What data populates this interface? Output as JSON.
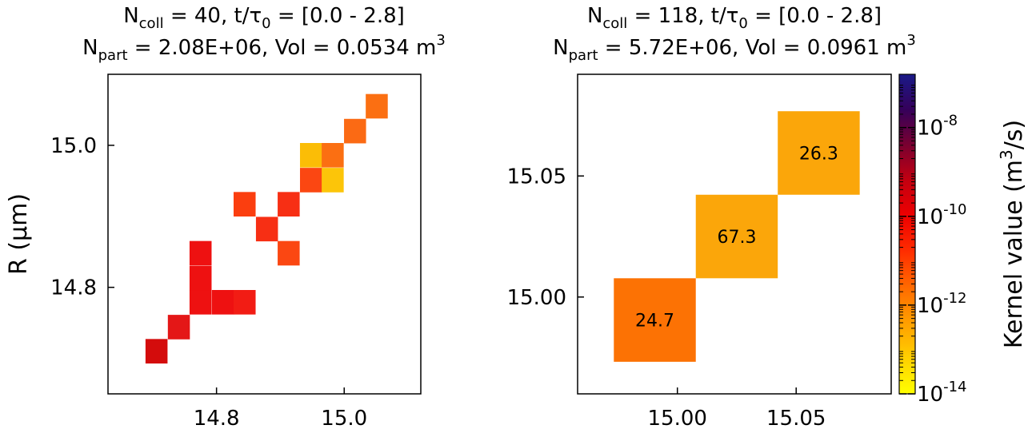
{
  "chart_data": [
    {
      "type": "heatmap",
      "title_line1": {
        "n": "N",
        "sub1": "coll",
        "mid": " = 40, t/τ",
        "sub2": "0",
        "tail": " = [0.0 - 2.8]"
      },
      "title_line2": {
        "n": "N",
        "sub": "part",
        "mid": " = 2.08E+06, Vol = 0.0534 m",
        "sup": "3"
      },
      "ylabel": "R (μm)",
      "xlim": [
        14.63,
        15.12
      ],
      "ylim": [
        14.65,
        15.1
      ],
      "xticks": [
        14.8,
        15.0
      ],
      "xtick_labels": [
        "14.8",
        "15.0"
      ],
      "yticks": [
        14.8,
        15.0
      ],
      "ytick_labels": [
        "14.8",
        "15.0"
      ],
      "cell_size": 0.0345,
      "cells": [
        {
          "x": 14.706,
          "y": 14.71,
          "color": "#d40c0c"
        },
        {
          "x": 14.741,
          "y": 14.744,
          "color": "#e41717"
        },
        {
          "x": 14.775,
          "y": 14.779,
          "color": "#ee1111"
        },
        {
          "x": 14.775,
          "y": 14.813,
          "color": "#ee1111"
        },
        {
          "x": 14.775,
          "y": 14.848,
          "color": "#ee1111"
        },
        {
          "x": 14.81,
          "y": 14.779,
          "color": "#ee1111"
        },
        {
          "x": 14.844,
          "y": 14.779,
          "color": "#f21c14"
        },
        {
          "x": 14.844,
          "y": 14.917,
          "color": "#fb3e0f"
        },
        {
          "x": 14.879,
          "y": 14.882,
          "color": "#f72f14"
        },
        {
          "x": 14.913,
          "y": 14.917,
          "color": "#f72f14"
        },
        {
          "x": 14.913,
          "y": 14.848,
          "color": "#fb4712"
        },
        {
          "x": 14.948,
          "y": 14.951,
          "color": "#fb4712"
        },
        {
          "x": 14.948,
          "y": 14.986,
          "color": "#fbbd06"
        },
        {
          "x": 14.982,
          "y": 14.951,
          "color": "#fcc509"
        },
        {
          "x": 14.982,
          "y": 14.986,
          "color": "#fb6f12"
        },
        {
          "x": 15.017,
          "y": 15.02,
          "color": "#fb6a14"
        },
        {
          "x": 15.051,
          "y": 15.055,
          "color": "#fb6f12"
        }
      ]
    },
    {
      "type": "heatmap",
      "title_line1": {
        "n": "N",
        "sub1": "coll",
        "mid": " = 118, t/τ",
        "sub2": "0",
        "tail": " = [0.0 - 2.8]"
      },
      "title_line2": {
        "n": "N",
        "sub": "part",
        "mid": " = 5.72E+06, Vol = 0.0961 m",
        "sup": "3"
      },
      "ylabel": "",
      "xlim": [
        14.958,
        15.09
      ],
      "ylim": [
        14.96,
        15.092
      ],
      "xticks": [
        15.0,
        15.05
      ],
      "xtick_labels": [
        "15.00",
        "15.05"
      ],
      "yticks": [
        15.0,
        15.05
      ],
      "ytick_labels": [
        "15.00",
        "15.05"
      ],
      "cell_size": 0.0345,
      "cells": [
        {
          "x": 14.9905,
          "y": 14.9905,
          "label": "24.7",
          "color": "#fc7204"
        },
        {
          "x": 15.025,
          "y": 15.025,
          "label": "67.3",
          "color": "#fba60a"
        },
        {
          "x": 15.0595,
          "y": 15.0595,
          "label": "26.3",
          "color": "#fba60a"
        }
      ]
    }
  ],
  "colorbar": {
    "label_main": "Kernel value (m",
    "label_sup": "3",
    "label_end": "/s)",
    "range_exp": [
      -14,
      -6.8
    ],
    "ticks": [
      {
        "exp": -14,
        "base": "10",
        "sup": "-14"
      },
      {
        "exp": -12,
        "base": "10",
        "sup": "-12"
      },
      {
        "exp": -10,
        "base": "10",
        "sup": "-10"
      },
      {
        "exp": -8,
        "base": "10",
        "sup": "-8"
      }
    ],
    "stops": [
      "#ffff00",
      "#ffd000",
      "#ff9f00",
      "#ff6a00",
      "#ff2e00",
      "#ee0000",
      "#c40010",
      "#7a0030",
      "#35005a",
      "#1a1a88"
    ]
  }
}
